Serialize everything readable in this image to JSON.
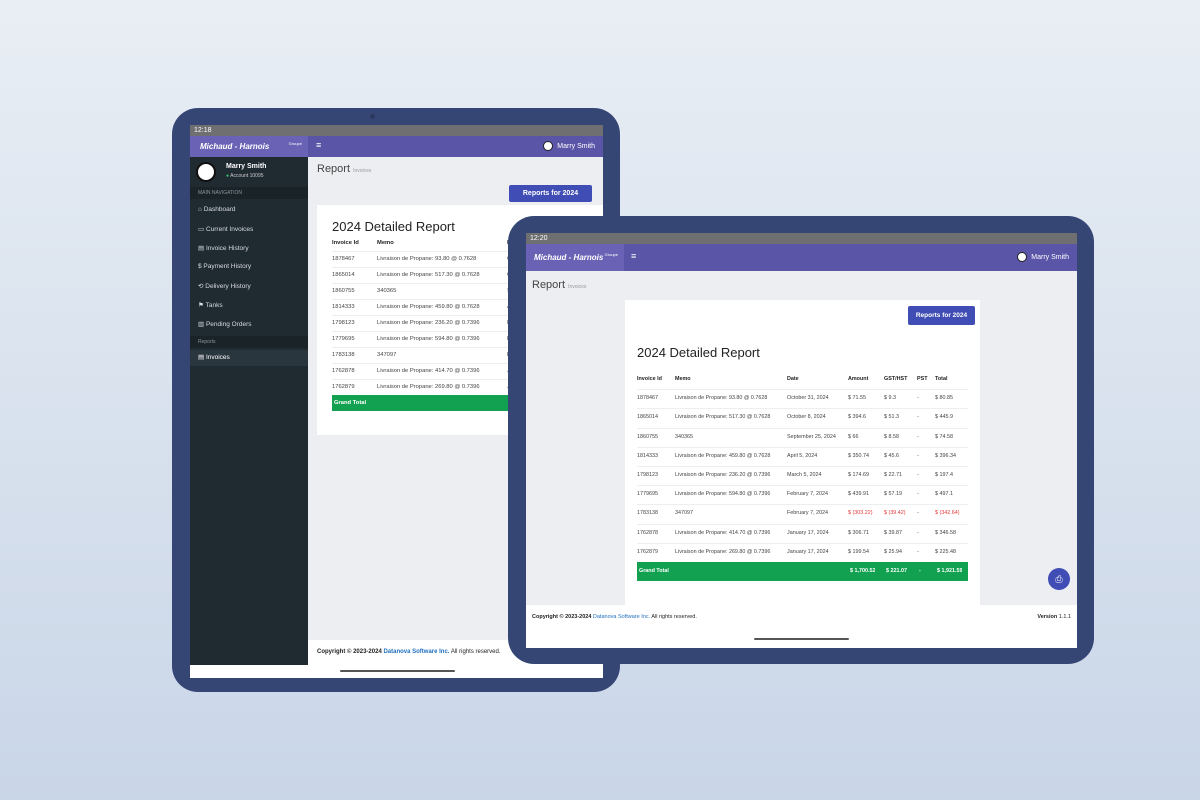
{
  "back_tablet": {
    "status_time": "12:18",
    "brand": "Michaud - Harnois",
    "brand_sub": "Groupe",
    "user_name": "Marry Smith",
    "sidebar": {
      "user_name": "Marry Smith",
      "account": "Account 10095",
      "section": "MAIN NAVIGATION",
      "items": [
        "Dashboard",
        "Current Invoices",
        "Invoice History",
        "Payment History",
        "Delivery History",
        "Tanks",
        "Pending Orders"
      ],
      "reports_section": "Reports",
      "reports_items": [
        "Invoices"
      ]
    },
    "page_title": "Report",
    "page_subtitle": "Invoices",
    "footer": {
      "copyright": "Copyright © 2023-2024",
      "company": "Datanova Software Inc.",
      "rights": "All rights reserved."
    }
  },
  "front_tablet": {
    "status_time": "12:20",
    "brand": "Michaud - Harnois",
    "brand_sub": "Groupe",
    "user_name": "Marry Smith",
    "page_title": "Report",
    "page_subtitle": "Invoices",
    "footer": {
      "copyright": "Copyright © 2023-2024",
      "company": "Datanova Software Inc.",
      "rights": "All rights reserved.",
      "version_label": "Version",
      "version": "1.1.1"
    }
  },
  "report": {
    "button": "Reports for 2024",
    "title": "2024 Detailed Report",
    "columns": [
      "Invoice Id",
      "Memo",
      "Date",
      "Amount",
      "GST/HST",
      "PST",
      "Total"
    ],
    "rows": [
      [
        "1878467",
        "Livraison de Propane: 93.80 @ 0.7628",
        "October 31, 2024",
        "$ 71.55",
        "$ 9.3",
        "-",
        "$ 80.85"
      ],
      [
        "1865014",
        "Livraison de Propane: 517.30 @ 0.7628",
        "October 8, 2024",
        "$ 394.6",
        "$ 51.3",
        "-",
        "$ 445.9"
      ],
      [
        "1860755",
        "340365",
        "September 25, 2024",
        "$ 66",
        "$ 8.58",
        "-",
        "$ 74.58"
      ],
      [
        "1814333",
        "Livraison de Propane: 459.80 @ 0.7628",
        "April 5, 2024",
        "$ 350.74",
        "$ 45.6",
        "-",
        "$ 396.34"
      ],
      [
        "1798123",
        "Livraison de Propane: 236.20 @ 0.7396",
        "March 5, 2024",
        "$ 174.69",
        "$ 22.71",
        "-",
        "$ 197.4"
      ],
      [
        "1779695",
        "Livraison de Propane: 594.80 @ 0.7396",
        "February 7, 2024",
        "$ 439.91",
        "$ 57.19",
        "-",
        "$ 497.1"
      ],
      [
        "1783138",
        "347097",
        "February 7, 2024",
        "$ (303.22)",
        "$ (39.42)",
        "-",
        "$ (342.64)"
      ],
      [
        "1762878",
        "Livraison de Propane: 414.70 @ 0.7396",
        "January 17, 2024",
        "$ 306.71",
        "$ 39.87",
        "-",
        "$ 346.58"
      ],
      [
        "1762879",
        "Livraison de Propane: 269.80 @ 0.7396",
        "January 17, 2024",
        "$ 199.54",
        "$ 25.94",
        "-",
        "$ 225.48"
      ]
    ],
    "grand_total": [
      "Grand Total",
      "$ 1,700.52",
      "$ 221.07",
      "-",
      "$ 1,921.59"
    ]
  }
}
